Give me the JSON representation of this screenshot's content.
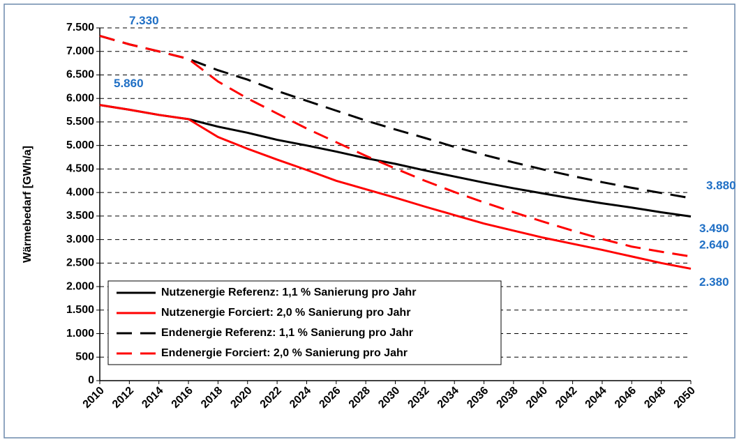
{
  "chart_data": {
    "type": "line",
    "ylabel": "Wärmebedarf [GWh/a]",
    "x": [
      2010,
      2012,
      2014,
      2016,
      2018,
      2020,
      2022,
      2024,
      2026,
      2028,
      2030,
      2032,
      2034,
      2036,
      2038,
      2040,
      2042,
      2044,
      2046,
      2048,
      2050
    ],
    "xlim": [
      2010,
      2050
    ],
    "xticks": [
      2010,
      2012,
      2014,
      2016,
      2018,
      2020,
      2022,
      2024,
      2026,
      2028,
      2030,
      2032,
      2034,
      2036,
      2038,
      2040,
      2042,
      2044,
      2046,
      2048,
      2050
    ],
    "ylim": [
      0,
      7500
    ],
    "yticks": [
      0,
      500,
      {
        "value": 1000,
        "label": "1.000"
      },
      {
        "value": 1500,
        "label": "1.500"
      },
      {
        "value": 2000,
        "label": "2.000"
      },
      {
        "value": 2500,
        "label": "2.500"
      },
      {
        "value": 3000,
        "label": "3.000"
      },
      {
        "value": 3500,
        "label": "3.500"
      },
      {
        "value": 4000,
        "label": "4.000"
      },
      {
        "value": 4500,
        "label": "4.500"
      },
      {
        "value": 5000,
        "label": "5.000"
      },
      {
        "value": 5500,
        "label": "5.500"
      },
      {
        "value": 6000,
        "label": "6.000"
      },
      {
        "value": 6500,
        "label": "6.500"
      },
      {
        "value": 7000,
        "label": "7.000"
      },
      {
        "value": 7500,
        "label": "7.500"
      }
    ],
    "grid": true,
    "legend": "lower left",
    "series": [
      {
        "name": "Nutzenergie Referenz: 1,1 % Sanierung pro Jahr",
        "color": "#000000",
        "dash": "solid",
        "values": [
          5860,
          5760,
          5650,
          5560,
          5400,
          5270,
          5120,
          5000,
          4870,
          4730,
          4610,
          4470,
          4340,
          4210,
          4090,
          3980,
          3870,
          3770,
          3680,
          3580,
          3490
        ],
        "value_labels": [
          "5.860",
          null,
          null,
          null,
          null,
          null,
          null,
          null,
          null,
          null,
          null,
          null,
          null,
          null,
          null,
          null,
          null,
          null,
          null,
          null,
          "3.490"
        ]
      },
      {
        "name": "Nutzenergie Forciert: 2,0 % Sanierung pro Jahr",
        "color": "#ff0000",
        "dash": "solid",
        "values": [
          5860,
          5760,
          5650,
          5560,
          5180,
          4930,
          4700,
          4480,
          4250,
          4070,
          3890,
          3700,
          3520,
          3340,
          3190,
          3040,
          2910,
          2780,
          2640,
          2500,
          2380
        ],
        "value_labels": [
          null,
          null,
          null,
          null,
          null,
          null,
          null,
          null,
          null,
          null,
          null,
          null,
          null,
          null,
          null,
          null,
          null,
          null,
          null,
          null,
          "2.380"
        ]
      },
      {
        "name": "Endenergie Referenz: 1,1 % Sanierung pro Jahr",
        "color": "#000000",
        "dash": "dashed",
        "values": [
          7330,
          7150,
          7000,
          6840,
          6600,
          6400,
          6160,
          5950,
          5740,
          5530,
          5340,
          5160,
          4970,
          4800,
          4640,
          4490,
          4350,
          4220,
          4100,
          3990,
          3880
        ],
        "value_labels": [
          "7.330",
          null,
          null,
          null,
          null,
          null,
          null,
          null,
          null,
          null,
          null,
          null,
          null,
          null,
          null,
          null,
          null,
          null,
          null,
          null,
          "3.880"
        ]
      },
      {
        "name": "Endenergie Forciert: 2,0 % Sanierung pro Jahr",
        "color": "#ff0000",
        "dash": "dashed",
        "values": [
          7330,
          7150,
          7000,
          6840,
          6360,
          6000,
          5680,
          5360,
          5070,
          4780,
          4510,
          4250,
          4010,
          3790,
          3580,
          3380,
          3190,
          3010,
          2850,
          2740,
          2640
        ],
        "value_labels": [
          null,
          null,
          null,
          null,
          null,
          null,
          null,
          null,
          null,
          null,
          null,
          null,
          null,
          null,
          null,
          null,
          null,
          null,
          null,
          null,
          "2.640"
        ]
      }
    ]
  }
}
